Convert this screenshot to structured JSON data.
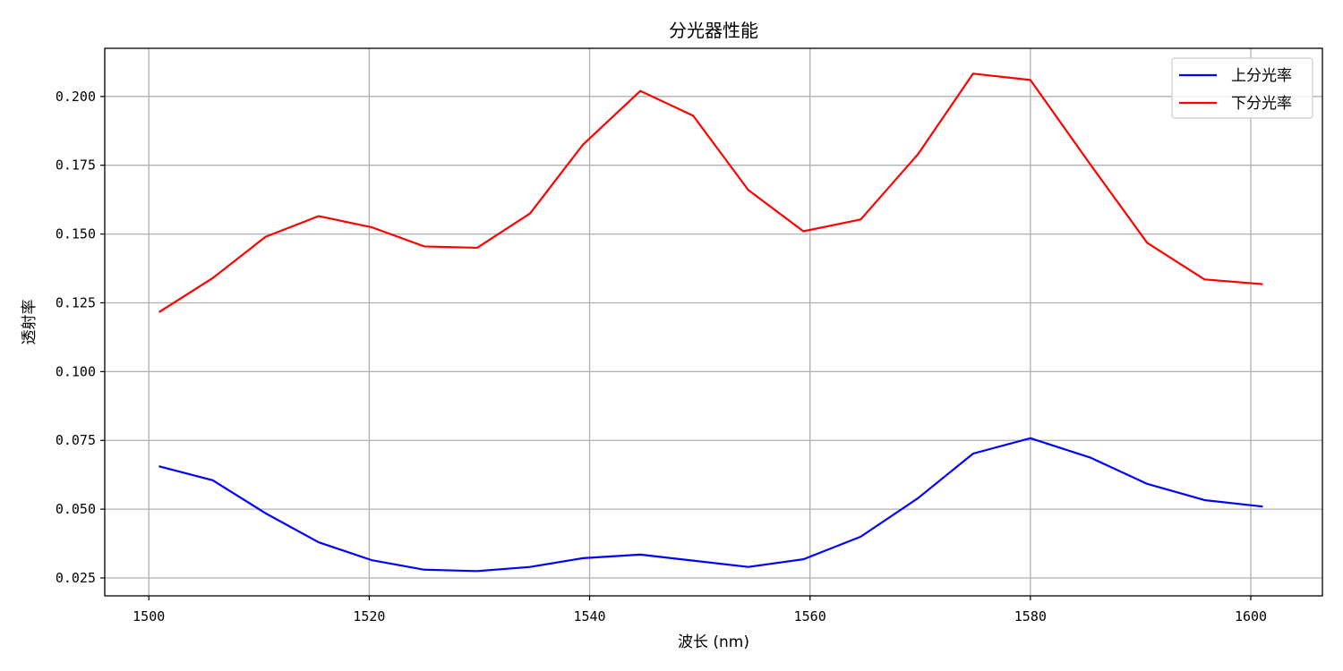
{
  "chart_data": {
    "type": "line",
    "title": "分光器性能",
    "xlabel": "波长 (nm)",
    "ylabel": "透射率",
    "xlim": [
      1496,
      1606.5
    ],
    "ylim": [
      0.0185,
      0.2175
    ],
    "x_ticks": [
      1500,
      1520,
      1540,
      1560,
      1580,
      1600
    ],
    "y_ticks": [
      0.025,
      0.05,
      0.075,
      0.1,
      0.125,
      0.15,
      0.175,
      0.2
    ],
    "y_tick_labels": [
      "0.025",
      "0.050",
      "0.075",
      "0.100",
      "0.125",
      "0.150",
      "0.175",
      "0.200"
    ],
    "grid": true,
    "legend_position": "top-right",
    "x": [
      1501,
      1505.8,
      1510.6,
      1515.4,
      1520.2,
      1525,
      1529.8,
      1534.6,
      1539.4,
      1544.6,
      1549.4,
      1554.4,
      1559.4,
      1564.6,
      1569.8,
      1574.8,
      1580,
      1585.4,
      1590.6,
      1595.8,
      1601
    ],
    "series": [
      {
        "name": "上分光率",
        "color": "#0000ff",
        "values": [
          0.0655,
          0.0605,
          0.0485,
          0.038,
          0.0315,
          0.028,
          0.0275,
          0.029,
          0.0322,
          0.0335,
          0.0313,
          0.029,
          0.0318,
          0.04,
          0.054,
          0.0702,
          0.0758,
          0.0688,
          0.0592,
          0.0533,
          0.051
        ]
      },
      {
        "name": "下分光率",
        "color": "#ff0000",
        "values": [
          0.1218,
          0.134,
          0.149,
          0.1565,
          0.1525,
          0.1455,
          0.145,
          0.1575,
          0.1825,
          0.202,
          0.193,
          0.166,
          0.151,
          0.1553,
          0.179,
          0.2083,
          0.206,
          0.1755,
          0.1468,
          0.1335,
          0.1318
        ]
      }
    ]
  }
}
